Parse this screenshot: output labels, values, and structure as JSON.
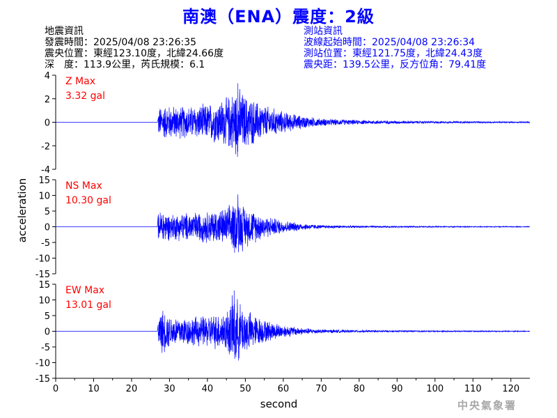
{
  "title": "南澳（ENA）震度：2級",
  "quake_info": {
    "heading": "地震資訊",
    "time": "發震時間：2025/04/08 23:26:35",
    "epicenter": "震央位置：東經123.10度，北緯24.66度",
    "depth_mag": "深　度：113.9公里，芮氏規模：6.1"
  },
  "station_info": {
    "heading": "測站資訊",
    "wave_time": "波線起始時間：2025/04/08 23:26:34",
    "location": "測站位置：東經121.75度，北緯24.43度",
    "distance": "震央距：139.5公里，反方位角：79.41度"
  },
  "agency": "中央氣象署",
  "colors": {
    "title": "#0000ff",
    "trace": "#0000ff",
    "max_label": "#ff0000",
    "axis": "#000000",
    "agency": "#a8a8a8"
  },
  "chart_data": [
    {
      "type": "line",
      "component": "Z",
      "max_label": "Z Max",
      "max_value": "3.32 gal",
      "peak": 3.32,
      "ylim": [
        -4,
        4
      ],
      "yticks": [
        -4,
        -2,
        0,
        2,
        4
      ],
      "signal_onset": 27,
      "envelope": [
        [
          27,
          1.3
        ],
        [
          28,
          1.6
        ],
        [
          35,
          1.5
        ],
        [
          40,
          1.7
        ],
        [
          45,
          2.3
        ],
        [
          48,
          3.3
        ],
        [
          50,
          2.5
        ],
        [
          55,
          1.6
        ],
        [
          60,
          1.0
        ],
        [
          65,
          0.6
        ],
        [
          70,
          0.35
        ],
        [
          80,
          0.2
        ],
        [
          100,
          0.1
        ],
        [
          125,
          0.06
        ]
      ]
    },
    {
      "type": "line",
      "component": "NS",
      "max_label": "NS Max",
      "max_value": "10.30 gal",
      "peak": 10.3,
      "ylim": [
        -15,
        15
      ],
      "yticks": [
        -15,
        -10,
        -5,
        0,
        5,
        10,
        15
      ],
      "signal_onset": 27,
      "envelope": [
        [
          27,
          4.5
        ],
        [
          28,
          6.5
        ],
        [
          30,
          4.5
        ],
        [
          35,
          5.0
        ],
        [
          40,
          5.5
        ],
        [
          45,
          6.5
        ],
        [
          48,
          10.3
        ],
        [
          50,
          7.0
        ],
        [
          55,
          4.0
        ],
        [
          60,
          2.2
        ],
        [
          65,
          1.2
        ],
        [
          70,
          0.6
        ],
        [
          80,
          0.35
        ],
        [
          100,
          0.2
        ],
        [
          125,
          0.12
        ]
      ]
    },
    {
      "type": "line",
      "component": "EW",
      "max_label": "EW Max",
      "max_value": "13.01 gal",
      "peak": 13.01,
      "ylim": [
        -15,
        15
      ],
      "yticks": [
        -15,
        -10,
        -5,
        0,
        5,
        10,
        15
      ],
      "signal_onset": 27,
      "envelope": [
        [
          27,
          5.0
        ],
        [
          28,
          8.0
        ],
        [
          30,
          5.5
        ],
        [
          35,
          5.0
        ],
        [
          40,
          5.5
        ],
        [
          45,
          7.0
        ],
        [
          47,
          13.0
        ],
        [
          49,
          9.0
        ],
        [
          52,
          6.0
        ],
        [
          55,
          4.0
        ],
        [
          60,
          2.2
        ],
        [
          65,
          1.2
        ],
        [
          70,
          0.7
        ],
        [
          80,
          0.4
        ],
        [
          100,
          0.25
        ],
        [
          125,
          0.15
        ]
      ]
    }
  ],
  "axes": {
    "x_label": "second",
    "y_label": "acceleration",
    "xlim": [
      0,
      125
    ],
    "xticks": [
      0,
      10,
      20,
      30,
      40,
      50,
      60,
      70,
      80,
      90,
      100,
      110,
      120
    ]
  }
}
